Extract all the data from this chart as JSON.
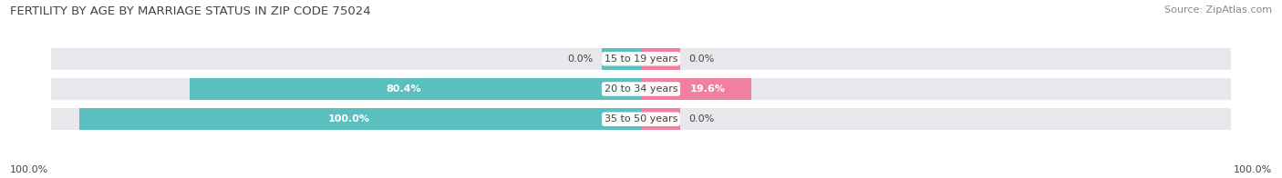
{
  "title": "FERTILITY BY AGE BY MARRIAGE STATUS IN ZIP CODE 75024",
  "source": "Source: ZipAtlas.com",
  "categories": [
    "15 to 19 years",
    "20 to 34 years",
    "35 to 50 years"
  ],
  "married": [
    0.0,
    80.4,
    100.0
  ],
  "unmarried": [
    0.0,
    19.6,
    0.0
  ],
  "married_color": "#5BBFBF",
  "unmarried_color": "#F080A0",
  "bar_bg_color": "#E8E8EC",
  "bar_height": 0.72,
  "title_fontsize": 9.5,
  "source_fontsize": 8,
  "label_fontsize": 8,
  "category_fontsize": 8,
  "legend_fontsize": 9,
  "axis_label_left": "100.0%",
  "axis_label_right": "100.0%",
  "background_color": "#FFFFFF",
  "small_bar_width": 7
}
